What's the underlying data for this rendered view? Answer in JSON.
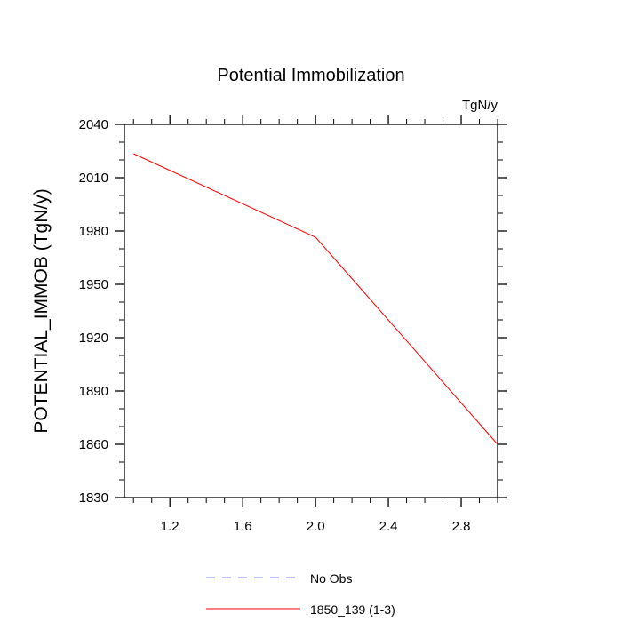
{
  "chart_data": {
    "type": "line",
    "title": "Potential Immobilization",
    "units_label": "TgN/y",
    "ylabel": "POTENTIAL_IMMOB  (TgN/y)",
    "xlabel": "",
    "xlim": [
      0.95,
      3.0
    ],
    "ylim": [
      1830,
      2040
    ],
    "x_ticks": [
      1.2,
      1.6,
      2.0,
      2.4,
      2.8
    ],
    "x_tick_labels": [
      "1.2",
      "1.6",
      "2.0",
      "2.4",
      "2.8"
    ],
    "y_ticks": [
      1830,
      1860,
      1890,
      1920,
      1950,
      1980,
      2010,
      2040
    ],
    "y_tick_labels": [
      "1830",
      "1860",
      "1890",
      "1920",
      "1950",
      "1980",
      "2010",
      "2040"
    ],
    "grid": false,
    "legend_placement": "bottom-center",
    "series": [
      {
        "name": "No Obs",
        "color": "#8080ff",
        "style": "dashed",
        "x": [],
        "y": []
      },
      {
        "name": "1850_139 (1-3)",
        "color": "#ff0000",
        "style": "solid",
        "x": [
          1.0,
          2.0,
          3.0
        ],
        "y": [
          2023.5,
          1976.5,
          1860
        ]
      }
    ]
  }
}
